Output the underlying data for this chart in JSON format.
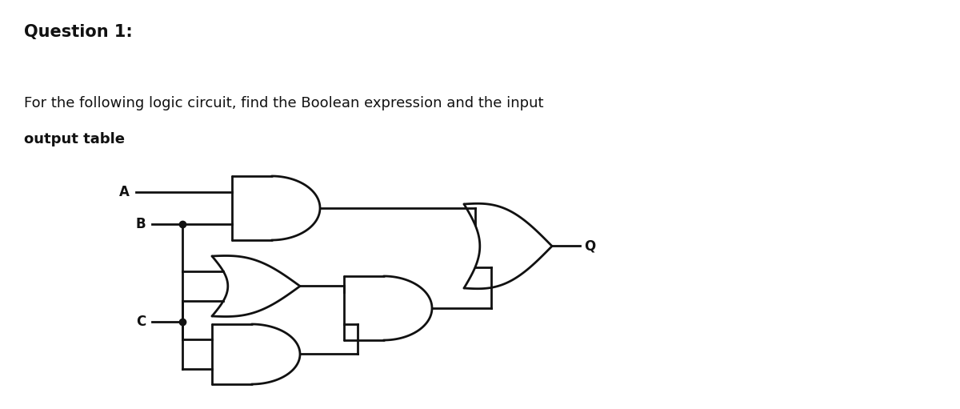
{
  "title": "Question 1:",
  "body_line1": "For the following logic circuit, find the Boolean expression and the input",
  "body_line2": "output table",
  "bg_color": "#ffffff",
  "lc": "#111111",
  "lw": 1.8,
  "title_fontsize": 15,
  "body_fontsize": 13,
  "label_fontsize": 12,
  "fig_w": 12.0,
  "fig_h": 5.11,
  "dpi": 100,
  "gate_lw": 2.0
}
